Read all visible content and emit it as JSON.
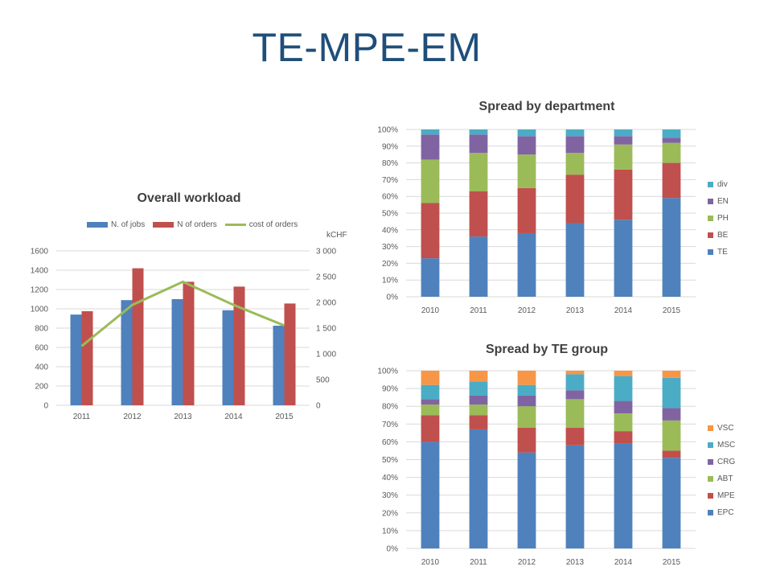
{
  "page": {
    "title": "TE-MPE-EM"
  },
  "chart_data": [
    {
      "id": "workload",
      "type": "bar",
      "title": "Overall workload",
      "categories": [
        "2011",
        "2012",
        "2013",
        "2014",
        "2015"
      ],
      "series": [
        {
          "name": "N. of jobs",
          "type": "bar",
          "axis": "left",
          "color": "#4f81bd",
          "values": [
            940,
            1090,
            1100,
            985,
            825
          ]
        },
        {
          "name": "N of orders",
          "type": "bar",
          "axis": "left",
          "color": "#c0504d",
          "values": [
            975,
            1420,
            1280,
            1230,
            1055
          ]
        },
        {
          "name": "cost of orders",
          "type": "line",
          "axis": "right",
          "color": "#9bbb59",
          "values": [
            1150,
            1950,
            2400,
            1950,
            1550
          ]
        }
      ],
      "ylim": [
        0,
        1600
      ],
      "yticks": [
        "0",
        "200",
        "400",
        "600",
        "800",
        "1000",
        "1200",
        "1400",
        "1600"
      ],
      "y2label": "kCHF",
      "y2lim": [
        0,
        3000
      ],
      "y2ticks": [
        "0",
        "500",
        "1 000",
        "1 500",
        "2 000",
        "2 500",
        "3 000"
      ],
      "legend": "top"
    },
    {
      "id": "department",
      "type": "bar",
      "stacked": true,
      "percent": true,
      "title": "Spread by department",
      "categories": [
        "2010",
        "2011",
        "2012",
        "2013",
        "2014",
        "2015"
      ],
      "series": [
        {
          "name": "TE",
          "color": "#4f81bd",
          "values": [
            23,
            36,
            38,
            44,
            46,
            59
          ]
        },
        {
          "name": "BE",
          "color": "#c0504d",
          "values": [
            33,
            27,
            27,
            29,
            30,
            21
          ]
        },
        {
          "name": "PH",
          "color": "#9bbb59",
          "values": [
            26,
            23,
            20,
            13,
            15,
            12
          ]
        },
        {
          "name": "EN",
          "color": "#8064a2",
          "values": [
            15,
            11,
            11,
            10,
            5,
            3
          ]
        },
        {
          "name": "div",
          "color": "#4bacc6",
          "values": [
            3,
            3,
            4,
            4,
            4,
            5
          ]
        }
      ],
      "yticks": [
        "0%",
        "10%",
        "20%",
        "30%",
        "40%",
        "50%",
        "60%",
        "70%",
        "80%",
        "90%",
        "100%"
      ],
      "legend": "right"
    },
    {
      "id": "tegroup",
      "type": "bar",
      "stacked": true,
      "percent": true,
      "title": "Spread by TE group",
      "categories": [
        "2010",
        "2011",
        "2012",
        "2013",
        "2014",
        "2015"
      ],
      "series": [
        {
          "name": "EPC",
          "color": "#4f81bd",
          "values": [
            60,
            67,
            54,
            58,
            59,
            51
          ]
        },
        {
          "name": "MPE",
          "color": "#c0504d",
          "values": [
            15,
            8,
            14,
            10,
            7,
            4
          ]
        },
        {
          "name": "ABT",
          "color": "#9bbb59",
          "values": [
            6,
            6,
            12,
            16,
            10,
            17
          ]
        },
        {
          "name": "CRG",
          "color": "#8064a2",
          "values": [
            3,
            5,
            6,
            5,
            7,
            7
          ]
        },
        {
          "name": "MSC",
          "color": "#4bacc6",
          "values": [
            8,
            8,
            6,
            9,
            14,
            17
          ]
        },
        {
          "name": "VSC",
          "color": "#f79646",
          "values": [
            8,
            6,
            8,
            2,
            3,
            4
          ]
        }
      ],
      "yticks": [
        "0%",
        "10%",
        "20%",
        "30%",
        "40%",
        "50%",
        "60%",
        "70%",
        "80%",
        "90%",
        "100%"
      ],
      "legend": "right"
    }
  ]
}
